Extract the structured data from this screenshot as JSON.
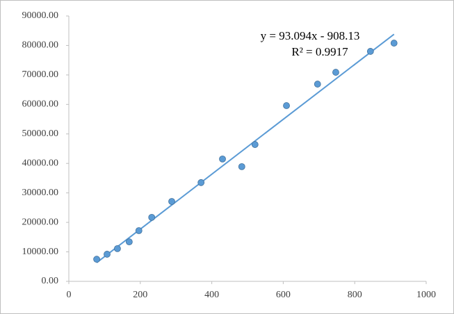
{
  "chart_data": {
    "type": "scatter",
    "x": [
      78,
      107,
      136,
      169,
      196,
      232,
      288,
      370,
      430,
      484,
      521,
      609,
      696,
      747,
      844,
      910
    ],
    "series": [
      {
        "color": "#5b9bd5",
        "values": [
          7500,
          9200,
          11100,
          13400,
          17200,
          21700,
          27100,
          33500,
          41500,
          38900,
          46400,
          59600,
          66900,
          70900,
          78000,
          80800
        ]
      }
    ],
    "xlim": [
      0,
      1000
    ],
    "xticks": [
      0,
      200,
      400,
      600,
      800,
      1000
    ],
    "ylim": [
      0,
      90000
    ],
    "yticks": [
      {
        "value": 0,
        "label": "0.00"
      },
      {
        "value": 10000,
        "label": "10000.00"
      },
      {
        "value": 20000,
        "label": "20000.00"
      },
      {
        "value": 30000,
        "label": "30000.00"
      },
      {
        "value": 40000,
        "label": "40000.00"
      },
      {
        "value": 50000,
        "label": "50000.00"
      },
      {
        "value": 60000,
        "label": "60000.00"
      },
      {
        "value": 70000,
        "label": "70000.00"
      },
      {
        "value": 80000,
        "label": "80000.00"
      },
      {
        "value": 90000,
        "label": "90000.00"
      }
    ],
    "trendline": {
      "slope": 93.094,
      "intercept": -908.13,
      "color": "#5b9bd5",
      "equation": "y = 93.094x - 908.13",
      "r2_label": "R² = 0.9917"
    },
    "grid": false
  }
}
